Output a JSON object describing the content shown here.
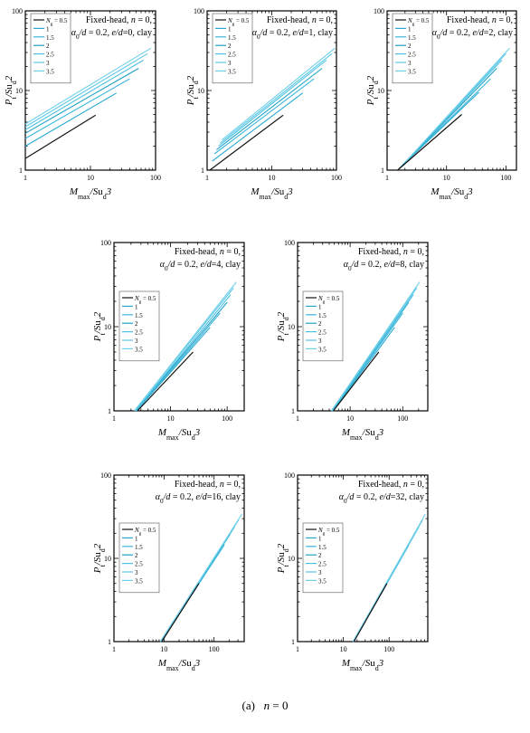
{
  "figure": {
    "caption": "(a)   n = 0",
    "caption_label": "(a)",
    "caption_n": "n",
    "caption_eq": " = 0"
  },
  "colors": {
    "black_series": "#111111",
    "cyan_series": [
      "#29a9d0",
      "#3bb6db",
      "#1ea2c4",
      "#4cc0e0",
      "#5ac8e6",
      "#6fd0ea"
    ],
    "axis": "#000000"
  },
  "chart_data": [
    {
      "type": "line",
      "title_line1": "Fixed-head,  n = 0,",
      "title_line2": "α0/d = 0.2,  e/d=0,  clay",
      "ed": "0",
      "xlabel": "Mmax/Sud3",
      "ylabel": "Pt/Sud2",
      "x_scale": "log",
      "y_scale": "log",
      "xlim": [
        1,
        100
      ],
      "ylim": [
        1,
        100
      ],
      "x_ticks": [
        "1",
        "10",
        "100"
      ],
      "y_ticks": [
        "1",
        "10",
        "100"
      ],
      "legend_title": "Ng =",
      "legend_position": "top-left",
      "series": [
        {
          "name": "0.5",
          "x": [
            1,
            12
          ],
          "y": [
            1.4,
            4.9
          ]
        },
        {
          "name": "1",
          "x": [
            1,
            25
          ],
          "y": [
            2.0,
            9.3
          ]
        },
        {
          "name": "1.5",
          "x": [
            1,
            40
          ],
          "y": [
            2.5,
            14.0
          ]
        },
        {
          "name": "2",
          "x": [
            1,
            55
          ],
          "y": [
            2.9,
            19.0
          ]
        },
        {
          "name": "2.5",
          "x": [
            1,
            65
          ],
          "y": [
            3.2,
            24.0
          ]
        },
        {
          "name": "3",
          "x": [
            1,
            75
          ],
          "y": [
            3.5,
            29.0
          ]
        },
        {
          "name": "3.5",
          "x": [
            1,
            85
          ],
          "y": [
            3.8,
            34.0
          ]
        }
      ]
    },
    {
      "type": "line",
      "title_line1": "Fixed-head,  n = 0,",
      "title_line2": "α0/d = 0.2,  e/d=1,  clay",
      "ed": "1",
      "xlabel": "Mmax/Sud3",
      "ylabel": "Pt/Sud2",
      "x_scale": "log",
      "y_scale": "log",
      "xlim": [
        1,
        100
      ],
      "ylim": [
        1,
        100
      ],
      "x_ticks": [
        "1",
        "10",
        "100"
      ],
      "y_ticks": [
        "1",
        "10",
        "100"
      ],
      "legend_title": "Ng =",
      "legend_position": "top-left",
      "series": [
        {
          "name": "0.5",
          "x": [
            1.1,
            15
          ],
          "y": [
            1.0,
            4.9
          ]
        },
        {
          "name": "1",
          "x": [
            1.2,
            30
          ],
          "y": [
            1.3,
            9.3
          ]
        },
        {
          "name": "1.5",
          "x": [
            1.3,
            45
          ],
          "y": [
            1.6,
            14.0
          ]
        },
        {
          "name": "2",
          "x": [
            1.4,
            60
          ],
          "y": [
            1.8,
            19.0
          ]
        },
        {
          "name": "2.5",
          "x": [
            1.5,
            70
          ],
          "y": [
            2.0,
            24.0
          ]
        },
        {
          "name": "3",
          "x": [
            1.6,
            85
          ],
          "y": [
            2.2,
            29.0
          ]
        },
        {
          "name": "3.5",
          "x": [
            1.7,
            95
          ],
          "y": [
            2.4,
            34.0
          ]
        }
      ]
    },
    {
      "type": "line",
      "title_line1": "Fixed-head,  n = 0,",
      "title_line2": "α0/d = 0.2,  e/d=2,  clay",
      "ed": "2",
      "xlabel": "Mmax/Sud3",
      "ylabel": "Pt/Sud2",
      "x_scale": "log",
      "y_scale": "log",
      "xlim": [
        1,
        150
      ],
      "ylim": [
        1,
        100
      ],
      "x_ticks": [
        "1",
        "10",
        "100"
      ],
      "y_ticks": [
        "1",
        "10",
        "100"
      ],
      "legend_title": "Ng =",
      "legend_position": "top-left",
      "series": [
        {
          "name": "0.5",
          "x": [
            1.5,
            18
          ],
          "y": [
            1.0,
            5.0
          ]
        },
        {
          "name": "1",
          "x": [
            1.6,
            35
          ],
          "y": [
            1.05,
            9.5
          ]
        },
        {
          "name": "1.5",
          "x": [
            1.7,
            55
          ],
          "y": [
            1.1,
            14.0
          ]
        },
        {
          "name": "2",
          "x": [
            1.8,
            70
          ],
          "y": [
            1.15,
            19.0
          ]
        },
        {
          "name": "2.5",
          "x": [
            1.9,
            85
          ],
          "y": [
            1.2,
            24.0
          ]
        },
        {
          "name": "3",
          "x": [
            2.0,
            100
          ],
          "y": [
            1.25,
            29.0
          ]
        },
        {
          "name": "3.5",
          "x": [
            2.1,
            115
          ],
          "y": [
            1.3,
            34.0
          ]
        }
      ]
    },
    {
      "type": "line",
      "title_line1": "Fixed-head,  n = 0,",
      "title_line2": "α0/d = 0.2,  e/d=4,  clay",
      "ed": "4",
      "xlabel": "Mmax/Sud3",
      "ylabel": "Pt/Sud2",
      "x_scale": "log",
      "y_scale": "log",
      "xlim": [
        1,
        200
      ],
      "ylim": [
        1,
        100
      ],
      "x_ticks": [
        "1",
        "10",
        "100"
      ],
      "y_ticks": [
        "1",
        "10",
        "100"
      ],
      "legend_title": "Ng =",
      "legend_position": "middle-left",
      "series": [
        {
          "name": "0.5",
          "x": [
            2.6,
            25
          ],
          "y": [
            1.0,
            5.0
          ]
        },
        {
          "name": "1",
          "x": [
            2.5,
            50
          ],
          "y": [
            1.0,
            9.8
          ]
        },
        {
          "name": "1.5",
          "x": [
            2.5,
            75
          ],
          "y": [
            1.0,
            14.5
          ]
        },
        {
          "name": "2",
          "x": [
            2.4,
            100
          ],
          "y": [
            1.0,
            19.5
          ]
        },
        {
          "name": "2.5",
          "x": [
            2.4,
            115
          ],
          "y": [
            1.0,
            24.0
          ]
        },
        {
          "name": "3",
          "x": [
            2.3,
            130
          ],
          "y": [
            1.0,
            29.0
          ]
        },
        {
          "name": "3.5",
          "x": [
            2.3,
            145
          ],
          "y": [
            1.0,
            34.0
          ]
        }
      ]
    },
    {
      "type": "line",
      "title_line1": "Fixed-head,  n = 0,",
      "title_line2": "α0/d = 0.2,  e/d=8,  clay",
      "ed": "8",
      "xlabel": "Mmax/Sud3",
      "ylabel": "Pt/Sud2",
      "x_scale": "log",
      "y_scale": "log",
      "xlim": [
        1,
        300
      ],
      "ylim": [
        1,
        100
      ],
      "x_ticks": [
        "1",
        "10",
        "100"
      ],
      "y_ticks": [
        "1",
        "10",
        "100"
      ],
      "legend_title": "Ng =",
      "legend_position": "middle-left",
      "series": [
        {
          "name": "0.5",
          "x": [
            4.8,
            35
          ],
          "y": [
            1.0,
            5.0
          ]
        },
        {
          "name": "1",
          "x": [
            4.7,
            70
          ],
          "y": [
            1.0,
            9.8
          ]
        },
        {
          "name": "1.5",
          "x": [
            4.6,
            100
          ],
          "y": [
            1.0,
            14.5
          ]
        },
        {
          "name": "2",
          "x": [
            4.5,
            130
          ],
          "y": [
            1.0,
            19.5
          ]
        },
        {
          "name": "2.5",
          "x": [
            4.5,
            160
          ],
          "y": [
            1.0,
            24.0
          ]
        },
        {
          "name": "3",
          "x": [
            4.4,
            185
          ],
          "y": [
            1.0,
            29.0
          ]
        },
        {
          "name": "3.5",
          "x": [
            4.4,
            210
          ],
          "y": [
            1.0,
            34.0
          ]
        }
      ]
    },
    {
      "type": "line",
      "title_line1": "Fixed-head,  n = 0,",
      "title_line2": "α0/d = 0.2,  e/d=16,  clay",
      "ed": "16",
      "xlabel": "Mmax/Sud3",
      "ylabel": "Pt/Sud2",
      "x_scale": "log",
      "y_scale": "log",
      "xlim": [
        1,
        400
      ],
      "ylim": [
        1,
        100
      ],
      "x_ticks": [
        "1",
        "10",
        "100"
      ],
      "y_ticks": [
        "1",
        "10",
        "100"
      ],
      "legend_title": "Ng =",
      "legend_position": "middle-left",
      "series": [
        {
          "name": "0.5",
          "x": [
            9.0,
            50
          ],
          "y": [
            1.0,
            5.0
          ]
        },
        {
          "name": "1",
          "x": [
            8.8,
            100
          ],
          "y": [
            1.0,
            9.8
          ]
        },
        {
          "name": "1.5",
          "x": [
            8.7,
            160
          ],
          "y": [
            1.0,
            14.5
          ]
        },
        {
          "name": "2",
          "x": [
            8.6,
            210
          ],
          "y": [
            1.0,
            19.5
          ]
        },
        {
          "name": "2.5",
          "x": [
            8.5,
            260
          ],
          "y": [
            1.0,
            24.0
          ]
        },
        {
          "name": "3",
          "x": [
            8.5,
            310
          ],
          "y": [
            1.0,
            29.0
          ]
        },
        {
          "name": "3.5",
          "x": [
            8.4,
            360
          ],
          "y": [
            1.0,
            34.0
          ]
        }
      ]
    },
    {
      "type": "line",
      "title_line1": "Fixed-head,  n = 0,",
      "title_line2": "α0/d = 0.2,  e/d=32,  clay",
      "ed": "32",
      "xlabel": "Mmax/Sud3",
      "ylabel": "Pt/Sud2",
      "x_scale": "log",
      "y_scale": "log",
      "xlim": [
        1,
        700
      ],
      "ylim": [
        1,
        100
      ],
      "x_ticks": [
        "1",
        "10",
        "100"
      ],
      "y_ticks": [
        "1",
        "10",
        "100"
      ],
      "legend_title": "Ng =",
      "legend_position": "middle-left",
      "series": [
        {
          "name": "0.5",
          "x": [
            17,
            90
          ],
          "y": [
            1.0,
            5.0
          ]
        },
        {
          "name": "1",
          "x": [
            16.8,
            180
          ],
          "y": [
            1.0,
            9.8
          ]
        },
        {
          "name": "1.5",
          "x": [
            16.6,
            270
          ],
          "y": [
            1.0,
            14.5
          ]
        },
        {
          "name": "2",
          "x": [
            16.5,
            360
          ],
          "y": [
            1.0,
            19.5
          ]
        },
        {
          "name": "2.5",
          "x": [
            16.4,
            450
          ],
          "y": [
            1.0,
            24.0
          ]
        },
        {
          "name": "3",
          "x": [
            16.3,
            540
          ],
          "y": [
            1.0,
            29.0
          ]
        },
        {
          "name": "3.5",
          "x": [
            16.2,
            620
          ],
          "y": [
            1.0,
            34.0
          ]
        }
      ]
    }
  ]
}
